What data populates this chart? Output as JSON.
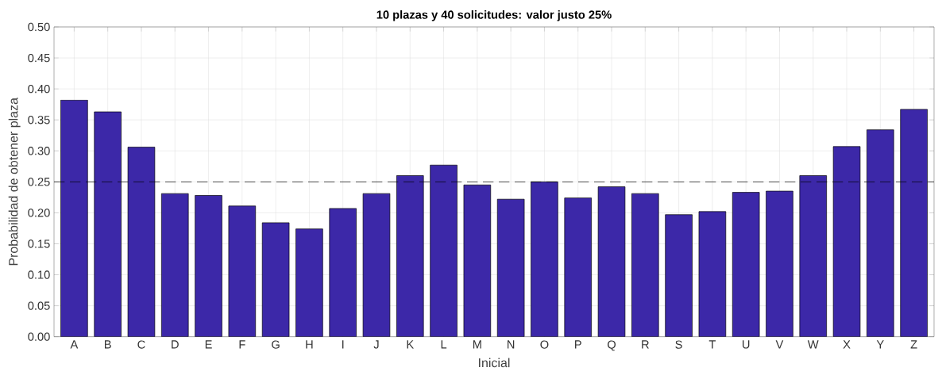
{
  "chart_data": {
    "type": "bar",
    "title": "10 plazas y 40 solicitudes: valor justo 25%",
    "xlabel": "Inicial",
    "ylabel": "Probabilidad de obtener plaza",
    "categories": [
      "A",
      "B",
      "C",
      "D",
      "E",
      "F",
      "G",
      "H",
      "I",
      "J",
      "K",
      "L",
      "M",
      "N",
      "O",
      "P",
      "Q",
      "R",
      "S",
      "T",
      "U",
      "V",
      "W",
      "X",
      "Y",
      "Z"
    ],
    "values": [
      0.382,
      0.363,
      0.306,
      0.231,
      0.228,
      0.211,
      0.184,
      0.174,
      0.207,
      0.231,
      0.26,
      0.277,
      0.245,
      0.222,
      0.25,
      0.224,
      0.242,
      0.231,
      0.197,
      0.202,
      0.233,
      0.235,
      0.26,
      0.307,
      0.334,
      0.367
    ],
    "color": "#3c28a8",
    "ylim": [
      0,
      0.5
    ],
    "yticks": [
      {
        "value": 0,
        "label": "0.00"
      },
      {
        "value": 0.05,
        "label": "0.05"
      },
      {
        "value": 0.1,
        "label": "0.10"
      },
      {
        "value": 0.15,
        "label": "0.15"
      },
      {
        "value": 0.2,
        "label": "0.20"
      },
      {
        "value": 0.25,
        "label": "0.25"
      },
      {
        "value": 0.3,
        "label": "0.30"
      },
      {
        "value": 0.35,
        "label": "0.35"
      },
      {
        "value": 0.4,
        "label": "0.40"
      },
      {
        "value": 0.45,
        "label": "0.45"
      },
      {
        "value": 0.5,
        "label": "0.50"
      }
    ],
    "ref_lines": [
      {
        "axis": "y",
        "value": 0.25,
        "color": "#000000",
        "line_style": "dashed"
      }
    ],
    "grid": true
  }
}
